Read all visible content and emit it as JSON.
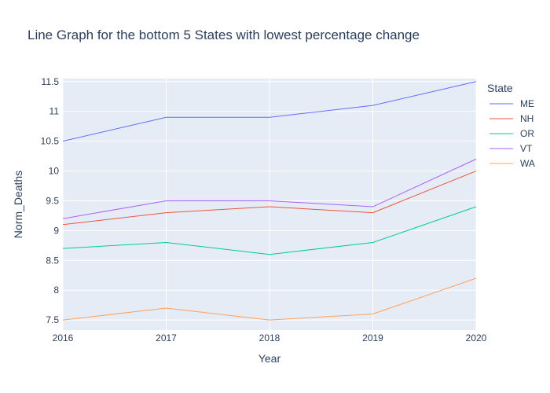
{
  "chart_data": {
    "type": "line",
    "title": "Line Graph for the bottom 5 States with lowest percentage change",
    "xlabel": "Year",
    "ylabel": "Norm_Deaths",
    "x": [
      2016,
      2017,
      2018,
      2019,
      2020
    ],
    "xlim": [
      2016,
      2020
    ],
    "ylim": [
      7.33,
      11.55
    ],
    "x_ticks": [
      "2016",
      "2017",
      "2018",
      "2019",
      "2020"
    ],
    "y_ticks": [
      {
        "value": 7.5,
        "label": "7.5"
      },
      {
        "value": 8,
        "label": "8"
      },
      {
        "value": 8.5,
        "label": "8.5"
      },
      {
        "value": 9,
        "label": "9"
      },
      {
        "value": 9.5,
        "label": "9.5"
      },
      {
        "value": 10,
        "label": "10"
      },
      {
        "value": 10.5,
        "label": "10.5"
      },
      {
        "value": 11,
        "label": "11"
      },
      {
        "value": 11.5,
        "label": "11.5"
      }
    ],
    "legend_title": "State",
    "legend_position": "right",
    "grid": true,
    "plot_bg": "#e5ecf6",
    "series": [
      {
        "name": "ME",
        "color": "#636efa",
        "values": [
          10.5,
          10.9,
          10.9,
          11.1,
          11.5
        ]
      },
      {
        "name": "NH",
        "color": "#ef553b",
        "values": [
          9.1,
          9.3,
          9.4,
          9.3,
          10.0
        ]
      },
      {
        "name": "OR",
        "color": "#00cc96",
        "values": [
          8.7,
          8.8,
          8.6,
          8.8,
          9.4
        ]
      },
      {
        "name": "VT",
        "color": "#ab63fa",
        "values": [
          9.2,
          9.5,
          9.5,
          9.4,
          10.2
        ]
      },
      {
        "name": "WA",
        "color": "#ffa15a",
        "values": [
          7.5,
          7.7,
          7.5,
          7.6,
          8.2
        ]
      }
    ]
  }
}
